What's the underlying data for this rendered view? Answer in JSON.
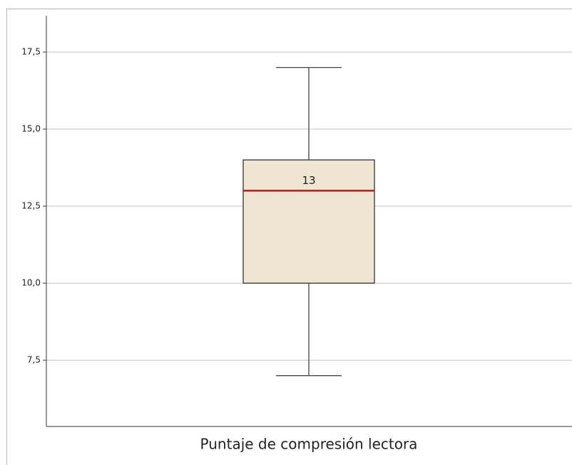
{
  "chart_data": {
    "type": "box",
    "categories": [
      "Puntaje de compresión lectora"
    ],
    "boxes": [
      {
        "whislo": 7,
        "q1": 10,
        "med": 13,
        "q3": 14,
        "whishi": 17
      }
    ],
    "color": "#eee6d2",
    "median_color": "#b21f1f",
    "ylim": [
      5.35,
      18.68
    ],
    "yticks": [
      {
        "value": 7.5,
        "label": "7,5"
      },
      {
        "value": 10,
        "label": "10,0"
      },
      {
        "value": 12.5,
        "label": "12,5"
      },
      {
        "value": 15,
        "label": "15,0"
      },
      {
        "value": 17.5,
        "label": "17,5"
      }
    ],
    "grid": true
  }
}
